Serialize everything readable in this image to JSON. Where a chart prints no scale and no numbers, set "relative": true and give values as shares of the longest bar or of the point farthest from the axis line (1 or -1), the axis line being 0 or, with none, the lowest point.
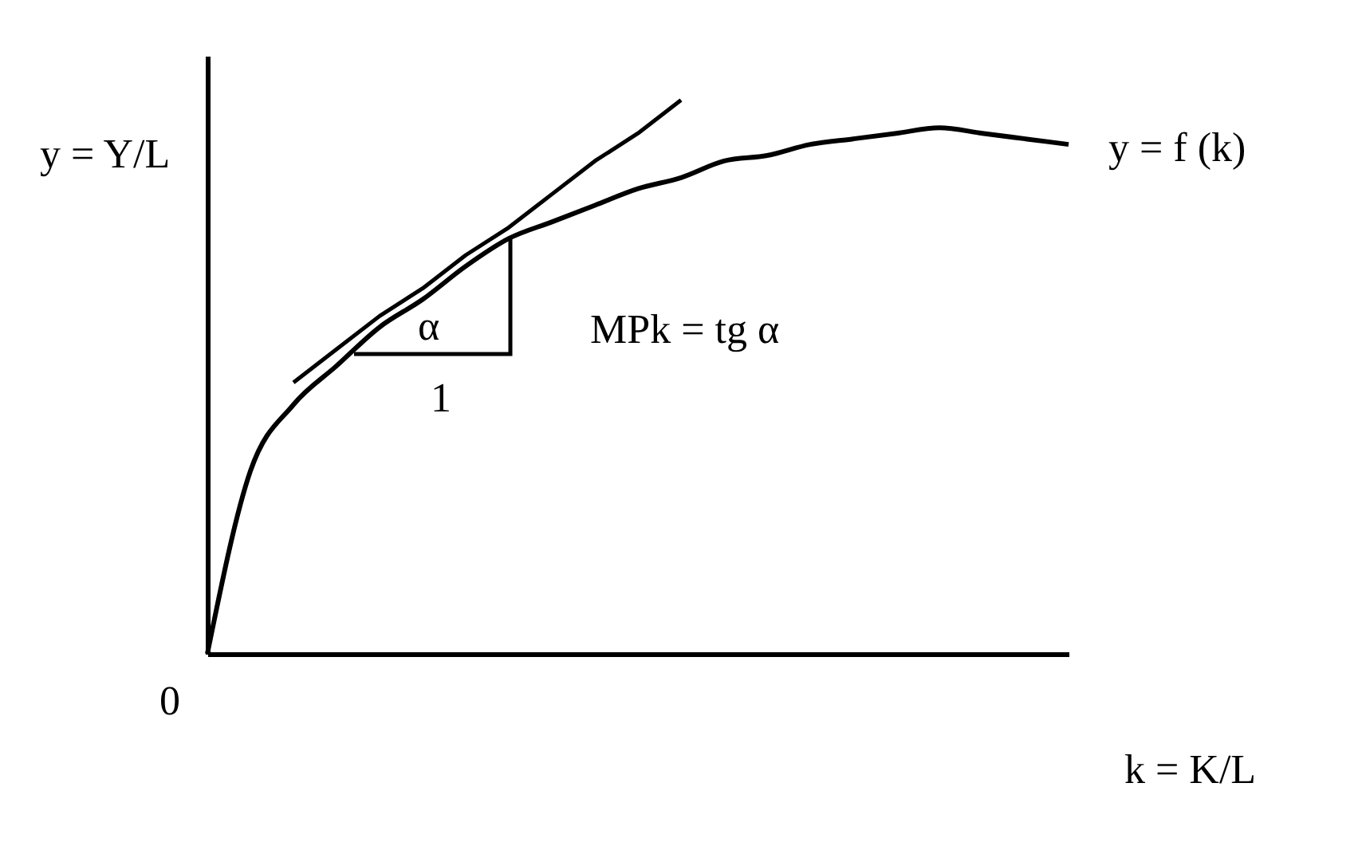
{
  "chart_data": {
    "type": "line",
    "relative": true,
    "xlabel": "k = K/L",
    "ylabel": "y = Y/L",
    "categories": [
      null,
      null,
      null,
      null,
      null,
      null,
      null,
      null,
      null,
      null,
      null,
      null,
      null,
      null,
      null,
      null,
      null,
      null,
      null,
      null,
      null
    ],
    "series": [
      {
        "name": "y = f (k)",
        "color": "#000000",
        "values": [
          0,
          0.33,
          0.45,
          0.52,
          0.59,
          0.64,
          0.7,
          0.75,
          0.78,
          0.81,
          0.84,
          0.86,
          0.89,
          0.9,
          0.92,
          0.93,
          0.94,
          0.95,
          0.94,
          0.93,
          0.92
        ]
      },
      {
        "type": "line",
        "color": "#000000",
        "values": [
          null,
          null,
          0.49,
          0.55,
          0.61,
          0.66,
          0.72,
          0.77,
          0.83,
          0.89,
          0.94,
          1.0,
          null,
          null,
          null,
          null,
          null,
          null,
          null,
          null,
          null
        ]
      }
    ],
    "annotations": [
      "0",
      "MPk = tg α",
      "α",
      "1"
    ],
    "grid": false
  }
}
